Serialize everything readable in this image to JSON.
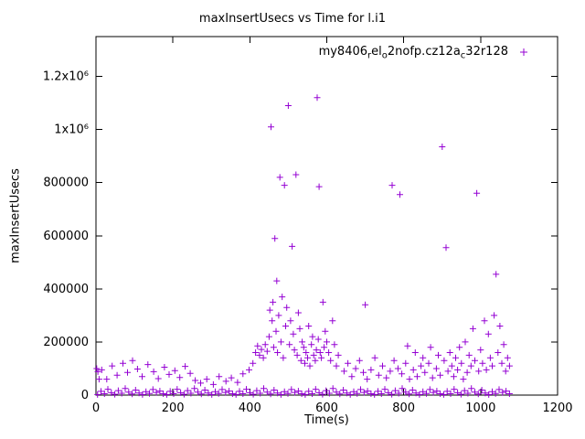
{
  "legend": {
    "segments": [
      {
        "text": "my8406"
      },
      {
        "text": "r",
        "sub": true
      },
      {
        "text": "el"
      },
      {
        "text": "o",
        "sub": true
      },
      {
        "text": "2nofp.cz12a"
      },
      {
        "text": "c",
        "sub": true
      },
      {
        "text": "32r128"
      }
    ]
  },
  "chart_data": {
    "type": "scatter",
    "title": "maxInsertUsecs vs Time for l.i1",
    "xlabel": "Time(s)",
    "ylabel": "maxInsertUsecs",
    "xlim": [
      0,
      1200
    ],
    "ylim": [
      0,
      1350000
    ],
    "xticks": [
      0,
      200,
      400,
      600,
      800,
      1000,
      1200
    ],
    "yticks": [
      {
        "value": 0,
        "label": "0"
      },
      {
        "value": 200000,
        "label": "200000"
      },
      {
        "value": 400000,
        "label": "400000"
      },
      {
        "value": 600000,
        "label": "600000"
      },
      {
        "value": 800000,
        "label": "800000"
      },
      {
        "value": 1000000,
        "label": "1x10⁶"
      },
      {
        "value": 1200000,
        "label": "1.2x10⁶"
      }
    ],
    "grid": false,
    "legend_position": "top-right-inside",
    "marker_color": "#9400d3",
    "series": [
      {
        "name": "my8406_rel_o2nofp.cz12a_c32r128",
        "color": "#9400d3",
        "marker": "plus",
        "points": [
          [
            4,
            2000
          ],
          [
            13,
            14000
          ],
          [
            22,
            5000
          ],
          [
            31,
            22000
          ],
          [
            40,
            9000
          ],
          [
            49,
            3000
          ],
          [
            58,
            17000
          ],
          [
            67,
            7000
          ],
          [
            76,
            25000
          ],
          [
            85,
            11000
          ],
          [
            94,
            4000
          ],
          [
            103,
            19000
          ],
          [
            112,
            8000
          ],
          [
            121,
            2000
          ],
          [
            130,
            13000
          ],
          [
            139,
            6000
          ],
          [
            148,
            21000
          ],
          [
            157,
            10000
          ],
          [
            166,
            15000
          ],
          [
            175,
            5000
          ],
          [
            184,
            2000
          ],
          [
            193,
            14000
          ],
          [
            202,
            5000
          ],
          [
            211,
            22000
          ],
          [
            220,
            9000
          ],
          [
            229,
            3000
          ],
          [
            238,
            17000
          ],
          [
            247,
            7000
          ],
          [
            256,
            25000
          ],
          [
            265,
            11000
          ],
          [
            274,
            4000
          ],
          [
            283,
            19000
          ],
          [
            292,
            8000
          ],
          [
            301,
            2000
          ],
          [
            310,
            13000
          ],
          [
            319,
            6000
          ],
          [
            328,
            21000
          ],
          [
            337,
            10000
          ],
          [
            346,
            15000
          ],
          [
            355,
            5000
          ],
          [
            364,
            2000
          ],
          [
            373,
            14000
          ],
          [
            382,
            5000
          ],
          [
            391,
            22000
          ],
          [
            400,
            9000
          ],
          [
            409,
            3000
          ],
          [
            418,
            17000
          ],
          [
            427,
            7000
          ],
          [
            436,
            25000
          ],
          [
            445,
            11000
          ],
          [
            454,
            4000
          ],
          [
            463,
            19000
          ],
          [
            472,
            8000
          ],
          [
            481,
            2000
          ],
          [
            490,
            13000
          ],
          [
            499,
            6000
          ],
          [
            508,
            21000
          ],
          [
            517,
            10000
          ],
          [
            526,
            15000
          ],
          [
            535,
            5000
          ],
          [
            544,
            2000
          ],
          [
            553,
            14000
          ],
          [
            562,
            5000
          ],
          [
            571,
            22000
          ],
          [
            580,
            9000
          ],
          [
            589,
            3000
          ],
          [
            598,
            17000
          ],
          [
            607,
            7000
          ],
          [
            616,
            25000
          ],
          [
            625,
            11000
          ],
          [
            634,
            4000
          ],
          [
            643,
            19000
          ],
          [
            652,
            8000
          ],
          [
            661,
            2000
          ],
          [
            670,
            13000
          ],
          [
            679,
            6000
          ],
          [
            688,
            21000
          ],
          [
            697,
            10000
          ],
          [
            706,
            15000
          ],
          [
            715,
            5000
          ],
          [
            724,
            2000
          ],
          [
            733,
            14000
          ],
          [
            742,
            5000
          ],
          [
            751,
            22000
          ],
          [
            760,
            9000
          ],
          [
            769,
            3000
          ],
          [
            778,
            17000
          ],
          [
            787,
            7000
          ],
          [
            796,
            25000
          ],
          [
            805,
            11000
          ],
          [
            814,
            4000
          ],
          [
            823,
            19000
          ],
          [
            832,
            8000
          ],
          [
            841,
            2000
          ],
          [
            850,
            13000
          ],
          [
            859,
            6000
          ],
          [
            868,
            21000
          ],
          [
            877,
            10000
          ],
          [
            886,
            15000
          ],
          [
            895,
            5000
          ],
          [
            904,
            2000
          ],
          [
            913,
            14000
          ],
          [
            922,
            5000
          ],
          [
            931,
            22000
          ],
          [
            940,
            9000
          ],
          [
            949,
            3000
          ],
          [
            958,
            17000
          ],
          [
            967,
            7000
          ],
          [
            976,
            25000
          ],
          [
            985,
            11000
          ],
          [
            994,
            4000
          ],
          [
            1003,
            19000
          ],
          [
            1012,
            8000
          ],
          [
            1021,
            2000
          ],
          [
            1030,
            13000
          ],
          [
            1039,
            6000
          ],
          [
            1048,
            21000
          ],
          [
            1057,
            10000
          ],
          [
            1066,
            15000
          ],
          [
            1075,
            5000
          ],
          [
            2,
            100000
          ],
          [
            5,
            88000
          ],
          [
            8,
            60000
          ],
          [
            15,
            95000
          ],
          [
            28,
            60000
          ],
          [
            42,
            110000
          ],
          [
            55,
            75000
          ],
          [
            70,
            120000
          ],
          [
            82,
            85000
          ],
          [
            95,
            130000
          ],
          [
            108,
            98000
          ],
          [
            120,
            70000
          ],
          [
            135,
            115000
          ],
          [
            150,
            88000
          ],
          [
            162,
            62000
          ],
          [
            178,
            105000
          ],
          [
            190,
            78000
          ],
          [
            205,
            92000
          ],
          [
            218,
            66000
          ],
          [
            232,
            108000
          ],
          [
            245,
            82000
          ],
          [
            258,
            55000
          ],
          [
            272,
            45000
          ],
          [
            288,
            60000
          ],
          [
            305,
            40000
          ],
          [
            320,
            70000
          ],
          [
            338,
            52000
          ],
          [
            352,
            65000
          ],
          [
            368,
            48000
          ],
          [
            382,
            80000
          ],
          [
            398,
            95000
          ],
          [
            408,
            120000
          ],
          [
            415,
            160000
          ],
          [
            420,
            185000
          ],
          [
            425,
            150000
          ],
          [
            430,
            172000
          ],
          [
            435,
            140000
          ],
          [
            440,
            190000
          ],
          [
            445,
            165000
          ],
          [
            450,
            220000
          ],
          [
            452,
            320000
          ],
          [
            455,
            1010000
          ],
          [
            458,
            280000
          ],
          [
            460,
            350000
          ],
          [
            462,
            180000
          ],
          [
            465,
            590000
          ],
          [
            468,
            240000
          ],
          [
            470,
            430000
          ],
          [
            472,
            160000
          ],
          [
            475,
            300000
          ],
          [
            478,
            820000
          ],
          [
            481,
            200000
          ],
          [
            484,
            370000
          ],
          [
            487,
            140000
          ],
          [
            490,
            790000
          ],
          [
            493,
            260000
          ],
          [
            496,
            330000
          ],
          [
            500,
            1090000
          ],
          [
            503,
            190000
          ],
          [
            506,
            280000
          ],
          [
            510,
            560000
          ],
          [
            513,
            230000
          ],
          [
            516,
            170000
          ],
          [
            520,
            830000
          ],
          [
            523,
            150000
          ],
          [
            526,
            310000
          ],
          [
            530,
            250000
          ],
          [
            533,
            130000
          ],
          [
            536,
            200000
          ],
          [
            540,
            180000
          ],
          [
            543,
            120000
          ],
          [
            546,
            160000
          ],
          [
            550,
            140000
          ],
          [
            553,
            260000
          ],
          [
            556,
            110000
          ],
          [
            560,
            190000
          ],
          [
            563,
            220000
          ],
          [
            566,
            150000
          ],
          [
            570,
            130000
          ],
          [
            573,
            170000
          ],
          [
            575,
            1120000
          ],
          [
            578,
            210000
          ],
          [
            580,
            785000
          ],
          [
            583,
            160000
          ],
          [
            586,
            140000
          ],
          [
            590,
            350000
          ],
          [
            593,
            180000
          ],
          [
            596,
            240000
          ],
          [
            600,
            200000
          ],
          [
            605,
            160000
          ],
          [
            610,
            130000
          ],
          [
            615,
            280000
          ],
          [
            620,
            190000
          ],
          [
            625,
            110000
          ],
          [
            630,
            150000
          ],
          [
            645,
            90000
          ],
          [
            655,
            120000
          ],
          [
            665,
            70000
          ],
          [
            675,
            100000
          ],
          [
            685,
            130000
          ],
          [
            695,
            85000
          ],
          [
            700,
            340000
          ],
          [
            705,
            60000
          ],
          [
            715,
            95000
          ],
          [
            725,
            140000
          ],
          [
            735,
            75000
          ],
          [
            745,
            110000
          ],
          [
            755,
            65000
          ],
          [
            765,
            90000
          ],
          [
            770,
            790000
          ],
          [
            775,
            130000
          ],
          [
            785,
            100000
          ],
          [
            790,
            755000
          ],
          [
            795,
            80000
          ],
          [
            805,
            120000
          ],
          [
            810,
            185000
          ],
          [
            815,
            60000
          ],
          [
            825,
            95000
          ],
          [
            830,
            160000
          ],
          [
            835,
            70000
          ],
          [
            845,
            110000
          ],
          [
            850,
            140000
          ],
          [
            855,
            85000
          ],
          [
            865,
            120000
          ],
          [
            870,
            180000
          ],
          [
            875,
            65000
          ],
          [
            885,
            100000
          ],
          [
            890,
            150000
          ],
          [
            895,
            75000
          ],
          [
            900,
            935000
          ],
          [
            905,
            130000
          ],
          [
            910,
            555000
          ],
          [
            915,
            90000
          ],
          [
            920,
            160000
          ],
          [
            925,
            110000
          ],
          [
            930,
            70000
          ],
          [
            935,
            140000
          ],
          [
            940,
            95000
          ],
          [
            945,
            180000
          ],
          [
            950,
            120000
          ],
          [
            955,
            60000
          ],
          [
            960,
            200000
          ],
          [
            965,
            85000
          ],
          [
            970,
            150000
          ],
          [
            975,
            110000
          ],
          [
            980,
            250000
          ],
          [
            985,
            130000
          ],
          [
            990,
            760000
          ],
          [
            995,
            90000
          ],
          [
            1000,
            170000
          ],
          [
            1005,
            120000
          ],
          [
            1010,
            280000
          ],
          [
            1015,
            95000
          ],
          [
            1020,
            230000
          ],
          [
            1025,
            140000
          ],
          [
            1030,
            110000
          ],
          [
            1035,
            300000
          ],
          [
            1040,
            455000
          ],
          [
            1045,
            160000
          ],
          [
            1050,
            260000
          ],
          [
            1055,
            120000
          ],
          [
            1060,
            190000
          ],
          [
            1065,
            90000
          ],
          [
            1070,
            140000
          ],
          [
            1075,
            110000
          ]
        ]
      }
    ]
  }
}
